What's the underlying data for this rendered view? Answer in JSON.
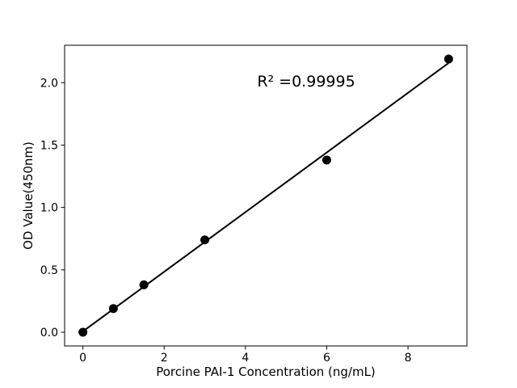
{
  "figure": {
    "background": "#ffffff"
  },
  "chart_data": {
    "type": "scatter",
    "title": "",
    "xlabel": "Porcine PAI-1 Concentration (ng/mL)",
    "ylabel": "OD Value(450nm)",
    "annotation": "R² =0.99995",
    "x": [
      0,
      0.75,
      1.5,
      3,
      6,
      9
    ],
    "y": [
      0.0,
      0.19,
      0.38,
      0.74,
      1.38,
      2.19
    ],
    "fit_line": true,
    "xticks": [
      0,
      2,
      4,
      6,
      8
    ],
    "yticks": [
      0.0,
      0.5,
      1.0,
      1.5,
      2.0
    ],
    "xlim": [
      -0.45,
      9.45
    ],
    "ylim": [
      -0.11,
      2.3
    ],
    "grid": false,
    "legend": null,
    "colors": {
      "marker": "#000000",
      "line": "#000000",
      "axis": "#000000",
      "text": "#000000"
    }
  }
}
